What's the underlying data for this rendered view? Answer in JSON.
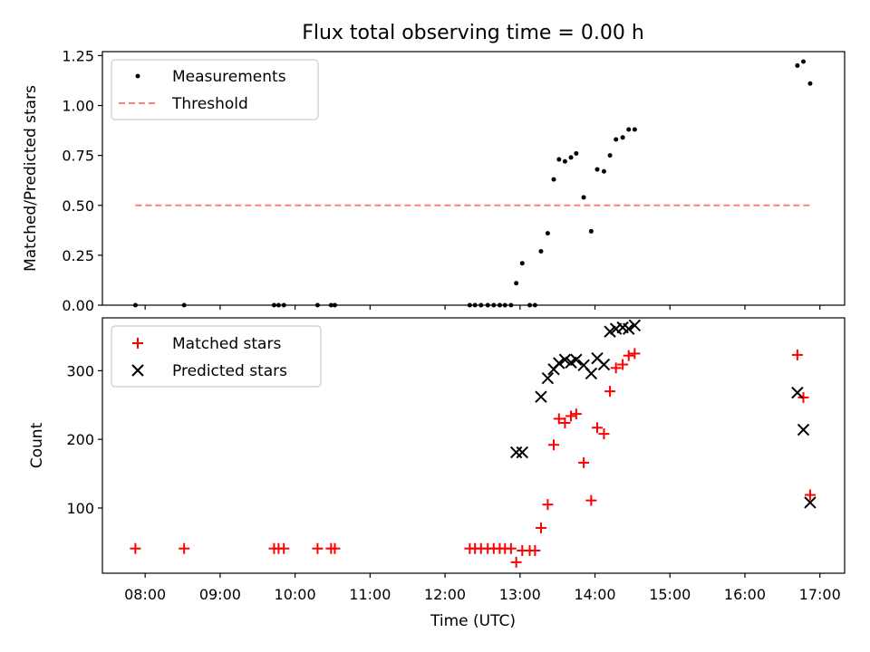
{
  "chart_data": [
    {
      "type": "scatter",
      "title": "Flux total observing time = 0.00 h",
      "ylabel": "Matched/Predicted stars",
      "xlabel": "",
      "xlim": [
        7.43,
        17.33
      ],
      "ylim": [
        0.0,
        1.27
      ],
      "yticks": [
        0.0,
        0.25,
        0.5,
        0.75,
        1.0,
        1.25
      ],
      "ytick_labels": [
        "0.00",
        "0.25",
        "0.50",
        "0.75",
        "1.00",
        "1.25"
      ],
      "legend_position": "top-left",
      "series": [
        {
          "name": "Measurements",
          "marker": "dot",
          "color": "#000000",
          "x": [
            7.87,
            8.52,
            9.72,
            9.78,
            9.85,
            10.3,
            10.48,
            10.53,
            12.33,
            12.4,
            12.48,
            12.57,
            12.65,
            12.73,
            12.8,
            12.88,
            12.95,
            13.03,
            13.13,
            13.2,
            13.28,
            13.37,
            13.45,
            13.52,
            13.6,
            13.68,
            13.75,
            13.85,
            13.95,
            14.03,
            14.12,
            14.2,
            14.28,
            14.37,
            14.45,
            14.53,
            16.7,
            16.78,
            16.87
          ],
          "y": [
            0.0,
            0.0,
            0.0,
            0.0,
            0.0,
            0.0,
            0.0,
            0.0,
            0.0,
            0.0,
            0.0,
            0.0,
            0.0,
            0.0,
            0.0,
            0.0,
            0.11,
            0.21,
            0.0,
            0.0,
            0.27,
            0.36,
            0.63,
            0.73,
            0.72,
            0.74,
            0.76,
            0.54,
            0.37,
            0.68,
            0.67,
            0.75,
            0.83,
            0.84,
            0.88,
            0.88,
            1.2,
            1.22,
            1.11
          ]
        },
        {
          "name": "Threshold",
          "marker": "dashed-line",
          "color": "#ff7f7f",
          "x": [
            7.87,
            16.87
          ],
          "y": [
            0.5,
            0.5
          ]
        }
      ]
    },
    {
      "type": "scatter",
      "title": "",
      "ylabel": "Count",
      "xlabel": "Time (UTC)",
      "xlim": [
        7.43,
        17.33
      ],
      "ylim": [
        5,
        377
      ],
      "yticks": [
        100,
        200,
        300
      ],
      "ytick_labels": [
        "100",
        "200",
        "300"
      ],
      "xticks": [
        8,
        9,
        10,
        11,
        12,
        13,
        14,
        15,
        16,
        17
      ],
      "xtick_labels": [
        "08:00",
        "09:00",
        "10:00",
        "11:00",
        "12:00",
        "13:00",
        "14:00",
        "15:00",
        "16:00",
        "17:00"
      ],
      "legend_position": "top-left",
      "series": [
        {
          "name": "Matched stars",
          "marker": "plus",
          "color": "#ff0000",
          "x": [
            7.87,
            8.52,
            9.72,
            9.78,
            9.85,
            10.3,
            10.48,
            10.53,
            12.33,
            12.4,
            12.48,
            12.57,
            12.65,
            12.73,
            12.8,
            12.88,
            12.95,
            13.03,
            13.13,
            13.2,
            13.28,
            13.37,
            13.45,
            13.52,
            13.6,
            13.68,
            13.75,
            13.85,
            13.95,
            14.03,
            14.12,
            14.2,
            14.28,
            14.37,
            14.45,
            14.53,
            16.7,
            16.78,
            16.87
          ],
          "y": [
            41,
            41,
            41,
            41,
            41,
            41,
            41,
            41,
            41,
            41,
            41,
            41,
            41,
            41,
            41,
            41,
            21,
            38,
            38,
            38,
            71,
            105,
            192,
            230,
            224,
            234,
            237,
            166,
            111,
            217,
            208,
            270,
            304,
            309,
            322,
            325,
            323,
            261,
            119
          ]
        },
        {
          "name": "Predicted stars",
          "marker": "x",
          "color": "#000000",
          "x": [
            12.95,
            13.03,
            13.28,
            13.37,
            13.45,
            13.52,
            13.6,
            13.68,
            13.75,
            13.85,
            13.95,
            14.03,
            14.12,
            14.2,
            14.28,
            14.37,
            14.45,
            14.53,
            16.7,
            16.78,
            16.87
          ],
          "y": [
            181,
            181,
            262,
            289,
            302,
            311,
            316,
            312,
            316,
            308,
            296,
            318,
            309,
            357,
            361,
            363,
            361,
            366,
            268,
            214,
            108
          ]
        }
      ]
    }
  ]
}
